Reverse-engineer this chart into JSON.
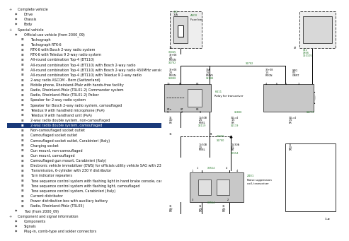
{
  "bg_left": "#b3d4e0",
  "bg_right": "#ffffff",
  "label_color": "#2e7d32",
  "wire_color": "#000000",
  "title_items": [
    {
      "text": "Complete vehicle",
      "level": 0,
      "icon": "+"
    },
    {
      "text": "Drive",
      "level": 1,
      "icon": "d"
    },
    {
      "text": "Chassis",
      "level": 1,
      "icon": "d"
    },
    {
      "text": "Body",
      "level": 1,
      "icon": "d"
    },
    {
      "text": "Special vehicle",
      "level": 0,
      "icon": "+"
    },
    {
      "text": "Official-use vehicle (from 2000_09)",
      "level": 1,
      "icon": "d"
    },
    {
      "text": "Tachograph",
      "level": 2,
      "icon": "s"
    },
    {
      "text": "Tachograph RTK-6",
      "level": 2,
      "icon": "s"
    },
    {
      "text": "RTK-6 with Bosch 2-way radio system",
      "level": 2,
      "icon": "s"
    },
    {
      "text": "RTK-6 with Teledux 9 2-way radio system",
      "level": 2,
      "icon": "s"
    },
    {
      "text": "All-round combination Top-4 (BT110)",
      "level": 2,
      "icon": "s"
    },
    {
      "text": "All-round combination Top-4 (BT110) with Bosch 2-way radio",
      "level": 2,
      "icon": "s"
    },
    {
      "text": "All-round combination Top-4 (BT110) with Bosch 2-way radio 450MHz version",
      "level": 2,
      "icon": "s"
    },
    {
      "text": "All-round combination Top-4 (BT110) with Teledux 9 2-way radio",
      "level": 2,
      "icon": "s"
    },
    {
      "text": "2-way radio ASCOM - Bern (Switzerland)",
      "level": 2,
      "icon": "s"
    },
    {
      "text": "Mobile phone, Rheinland-Pfalz with hands-free facility",
      "level": 2,
      "icon": "s"
    },
    {
      "text": "Radio, Rheinland-Pfalz (TRL01-2) Commander system",
      "level": 2,
      "icon": "s"
    },
    {
      "text": "Radio, Rheinland-Pfalz (TRL01-2) Peiker",
      "level": 2,
      "icon": "s"
    },
    {
      "text": "Speaker for 2-way radio system",
      "level": 2,
      "icon": "s"
    },
    {
      "text": "Speaker for Bosch 2-way radio system, camouflaged",
      "level": 2,
      "icon": "s"
    },
    {
      "text": "Teledux 9 with handheld microphone (PvA)",
      "level": 2,
      "icon": "s"
    },
    {
      "text": "Teledux 9 with handhand unit (PvA)",
      "level": 2,
      "icon": "s"
    },
    {
      "text": "2-way radio double system, non-camouflaged",
      "level": 2,
      "icon": "s"
    },
    {
      "text": "2-way radio double system, camouflaged",
      "level": 2,
      "icon": "s",
      "highlight": true
    },
    {
      "text": "Non-camouflaged socket outlet",
      "level": 2,
      "icon": "s"
    },
    {
      "text": "Camouflaged socket outlet",
      "level": 2,
      "icon": "s"
    },
    {
      "text": "Camouflaged socket outlet, Carabinieri (Italy)",
      "level": 2,
      "icon": "s"
    },
    {
      "text": "Charging socket",
      "level": 2,
      "icon": "s"
    },
    {
      "text": "Gun mount, non-camouflaged",
      "level": 2,
      "icon": "s"
    },
    {
      "text": "Gun mount, camouflaged",
      "level": 2,
      "icon": "s"
    },
    {
      "text": "Camouflaged gun mount, Carabinieri (Italy)",
      "level": 2,
      "icon": "s"
    },
    {
      "text": "Electronic vehicle immobilizer (EWS) for officials utility vehicle SAG with 230V so...",
      "level": 2,
      "icon": "s"
    },
    {
      "text": "Transmission, 6-cylinder with 230 V distributor",
      "level": 2,
      "icon": "s"
    },
    {
      "text": "Turn indicator repeaters",
      "level": 2,
      "icon": "s"
    },
    {
      "text": "Tone sequence control system with flashing light in hand brake console, camou...",
      "level": 2,
      "icon": "s"
    },
    {
      "text": "Tone sequence control system with flashing light, camouflaged",
      "level": 2,
      "icon": "s"
    },
    {
      "text": "Tone sequence control system, Carabinieri (Italy)",
      "level": 2,
      "icon": "s"
    },
    {
      "text": "Current distributor",
      "level": 2,
      "icon": "s"
    },
    {
      "text": "Power distribution box with auxiliary battery",
      "level": 2,
      "icon": "s"
    },
    {
      "text": "Radio, Rheinland-Pfalz (TRL05)",
      "level": 2,
      "icon": "s"
    },
    {
      "text": "Taxi (from 2000_09)",
      "level": 1,
      "icon": "d"
    },
    {
      "text": "Component and signal information",
      "level": 0,
      "icon": "+"
    },
    {
      "text": "Components",
      "level": 1,
      "icon": "d"
    },
    {
      "text": "Signals",
      "level": 1,
      "icon": "d"
    },
    {
      "text": "Plug-in, comb-type and solder connectors",
      "level": 1,
      "icon": "d"
    }
  ]
}
